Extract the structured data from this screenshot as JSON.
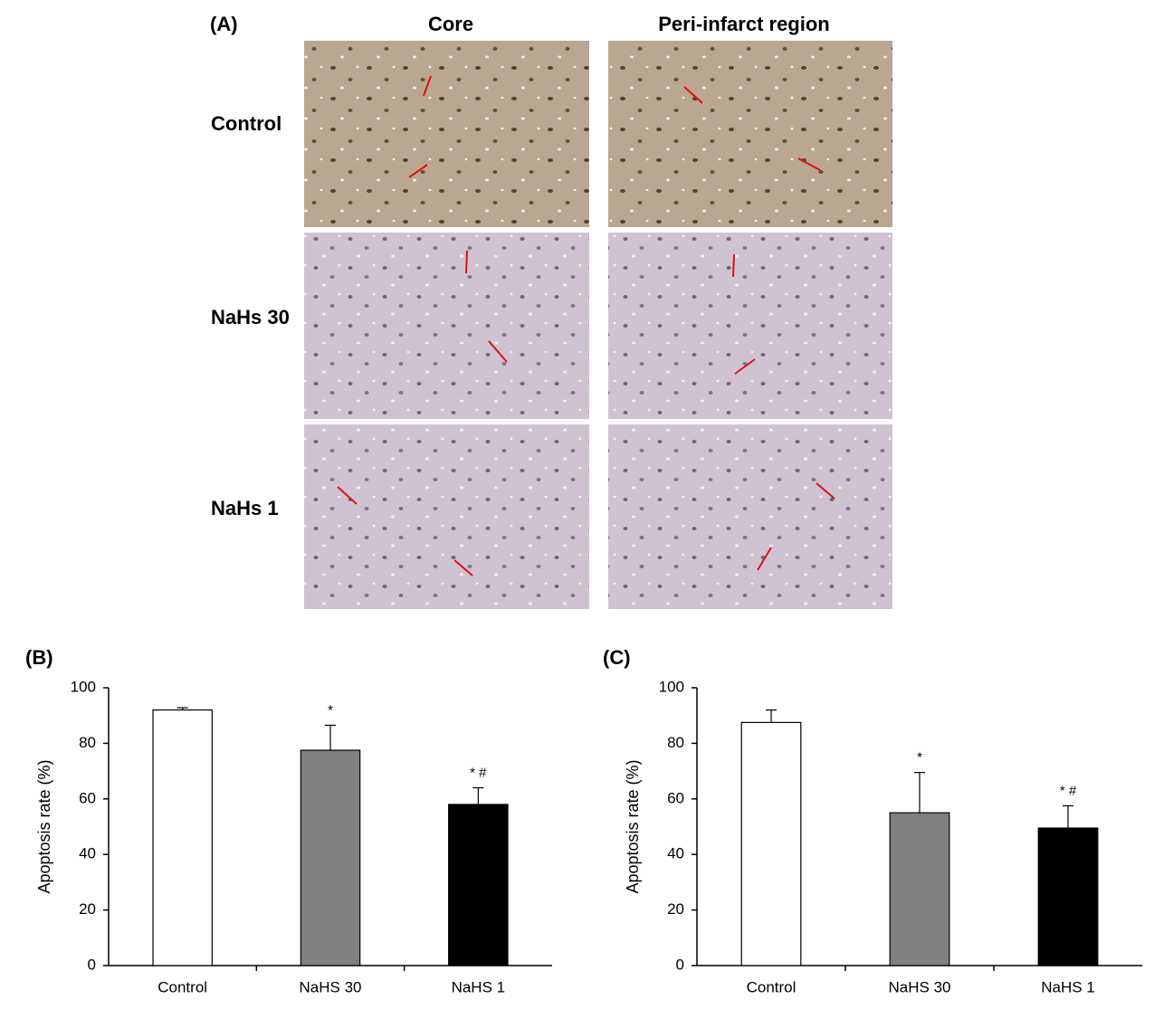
{
  "panel_a": {
    "label": "(A)",
    "columns": [
      "Core",
      "Peri-infarct region"
    ],
    "rows": [
      "Control",
      "NaHs 30",
      "NaHs 1"
    ]
  },
  "chart_data": [
    {
      "type": "bar",
      "panel_label": "(B)",
      "y_label": "Apoptosis rate (%)",
      "categories": [
        "Control",
        "NaHS 30",
        "NaHS 1"
      ],
      "values": [
        92,
        77.5,
        58
      ],
      "errors": [
        0.8,
        9,
        6
      ],
      "colors": [
        "#ffffff",
        "#808080",
        "#000000"
      ],
      "annotations": [
        null,
        "*",
        "* #"
      ],
      "ylim": [
        0,
        100
      ],
      "yticks": [
        0,
        20,
        40,
        60,
        80,
        100
      ]
    },
    {
      "type": "bar",
      "panel_label": "(C)",
      "y_label": "Apoptosis rate (%)",
      "categories": [
        "Control",
        "NaHS 30",
        "NaHS 1"
      ],
      "values": [
        87.5,
        55,
        49.5
      ],
      "errors": [
        4.5,
        14.5,
        8
      ],
      "colors": [
        "#ffffff",
        "#808080",
        "#000000"
      ],
      "annotations": [
        null,
        "*",
        "* #"
      ],
      "ylim": [
        0,
        100
      ],
      "yticks": [
        0,
        20,
        40,
        60,
        80,
        100
      ]
    }
  ]
}
